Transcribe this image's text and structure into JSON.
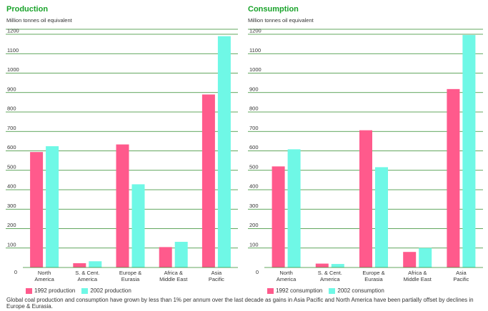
{
  "colors": {
    "c1992": "#ff5a8c",
    "c2002": "#6ff8e6",
    "title": "#19a32a",
    "grid": "#2f8a2a"
  },
  "zero_label": "0",
  "chart_data": [
    {
      "type": "bar",
      "title": "Production",
      "ylabel": "Million tonnes oil equivalent",
      "ylim": [
        0,
        1200
      ],
      "yticks": [
        100,
        200,
        300,
        400,
        500,
        600,
        700,
        800,
        900,
        1000,
        1100,
        1200
      ],
      "categories": [
        [
          "North",
          "America"
        ],
        [
          "S. & Cent.",
          "America"
        ],
        [
          "Europe &",
          "Eurasia"
        ],
        [
          "Africa &",
          "Middle East"
        ],
        [
          "Asia",
          "Pacific"
        ]
      ],
      "series": [
        {
          "name": "1992 production",
          "values": [
            594,
            22,
            633,
            105,
            890
          ]
        },
        {
          "name": "2002 production",
          "values": [
            624,
            32,
            428,
            132,
            1190
          ]
        }
      ]
    },
    {
      "type": "bar",
      "title": "Consumption",
      "ylabel": "Million tonnes oil equivalent",
      "ylim": [
        0,
        1200
      ],
      "yticks": [
        100,
        200,
        300,
        400,
        500,
        600,
        700,
        800,
        900,
        1000,
        1100,
        1200
      ],
      "categories": [
        [
          "North",
          "America"
        ],
        [
          "S. & Cent.",
          "America"
        ],
        [
          "Europe &",
          "Eurasia"
        ],
        [
          "Africa &",
          "Middle East"
        ],
        [
          "Asia",
          "Pacific"
        ]
      ],
      "series": [
        {
          "name": "1992 consumption",
          "values": [
            520,
            20,
            706,
            80,
            918
          ]
        },
        {
          "name": "2002 consumption",
          "values": [
            608,
            18,
            516,
            100,
            1196
          ]
        }
      ]
    }
  ],
  "caption": "Global coal production and consumption have grown by less than 1% per annum over the last decade as gains in Asia Pacific and North America have been partially offset by declines in Europe & Eurasia."
}
